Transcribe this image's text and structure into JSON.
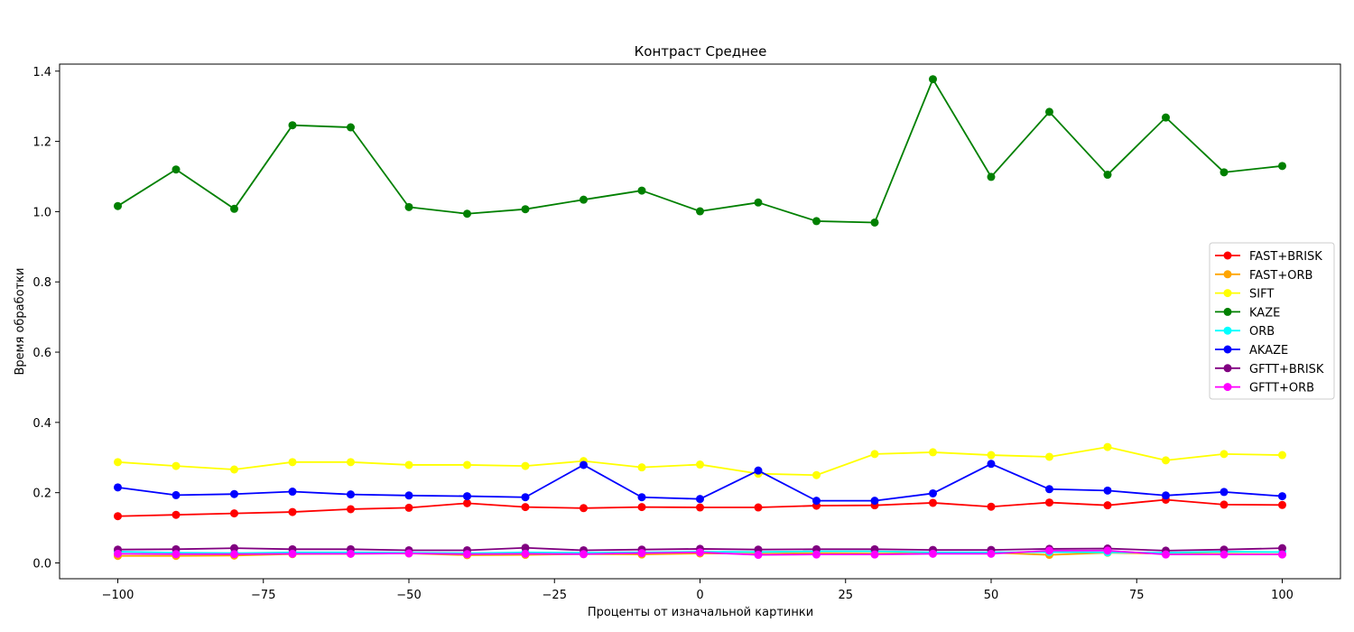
{
  "chart_data": {
    "type": "line",
    "title": "Контраст Среднее",
    "xlabel": "Проценты от изначальной картинки",
    "ylabel": "Время обработки",
    "xlim": [
      -110,
      110
    ],
    "ylim": [
      -0.045,
      1.42
    ],
    "xticks": [
      -100,
      -75,
      -50,
      -25,
      0,
      25,
      50,
      75,
      100
    ],
    "xtick_labels": [
      "−100",
      "−75",
      "−50",
      "−25",
      "0",
      "25",
      "50",
      "75",
      "100"
    ],
    "yticks": [
      0.0,
      0.2,
      0.4,
      0.6,
      0.8,
      1.0,
      1.2,
      1.4
    ],
    "ytick_labels": [
      "0.0",
      "0.2",
      "0.4",
      "0.6",
      "0.8",
      "1.0",
      "1.2",
      "1.4"
    ],
    "grid": false,
    "legend_position": "right",
    "x": [
      -100,
      -90,
      -80,
      -70,
      -60,
      -50,
      -40,
      -30,
      -20,
      -10,
      0,
      10,
      20,
      30,
      40,
      50,
      60,
      70,
      80,
      90,
      100
    ],
    "series": [
      {
        "name": "FAST+BRISK",
        "color": "#ff0000",
        "values": [
          0.133,
          0.137,
          0.141,
          0.145,
          0.153,
          0.157,
          0.17,
          0.159,
          0.156,
          0.159,
          0.158,
          0.158,
          0.163,
          0.164,
          0.171,
          0.16,
          0.172,
          0.164,
          0.18,
          0.166,
          0.165
        ]
      },
      {
        "name": "FAST+ORB",
        "color": "#ffa500",
        "values": [
          0.02,
          0.02,
          0.021,
          0.025,
          0.026,
          0.027,
          0.022,
          0.023,
          0.025,
          0.024,
          0.027,
          0.026,
          0.028,
          0.027,
          0.027,
          0.029,
          0.023,
          0.029,
          0.026,
          0.026,
          0.025
        ]
      },
      {
        "name": "SIFT",
        "color": "#ffff00",
        "values": [
          0.287,
          0.276,
          0.266,
          0.287,
          0.287,
          0.279,
          0.279,
          0.276,
          0.29,
          0.272,
          0.28,
          0.254,
          0.25,
          0.31,
          0.315,
          0.307,
          0.302,
          0.33,
          0.292,
          0.31,
          0.307
        ]
      },
      {
        "name": "KAZE",
        "color": "#008000",
        "values": [
          1.016,
          1.12,
          1.008,
          1.246,
          1.24,
          1.013,
          0.994,
          1.007,
          1.034,
          1.06,
          1.001,
          1.026,
          0.973,
          0.969,
          1.377,
          1.099,
          1.284,
          1.105,
          1.268,
          1.112,
          1.13
        ]
      },
      {
        "name": "ORB",
        "color": "#00ffff",
        "values": [
          0.032,
          0.029,
          0.028,
          0.03,
          0.03,
          0.029,
          0.028,
          0.03,
          0.029,
          0.03,
          0.032,
          0.031,
          0.033,
          0.033,
          0.03,
          0.03,
          0.031,
          0.03,
          0.029,
          0.032,
          0.031
        ]
      },
      {
        "name": "AKAZE",
        "color": "#0000ff",
        "values": [
          0.215,
          0.193,
          0.196,
          0.203,
          0.195,
          0.192,
          0.19,
          0.187,
          0.279,
          0.187,
          0.182,
          0.263,
          0.177,
          0.177,
          0.198,
          0.282,
          0.21,
          0.206,
          0.192,
          0.202,
          0.19
        ]
      },
      {
        "name": "GFTT+BRISK",
        "color": "#800080",
        "values": [
          0.038,
          0.039,
          0.042,
          0.039,
          0.039,
          0.036,
          0.036,
          0.043,
          0.036,
          0.038,
          0.04,
          0.038,
          0.039,
          0.039,
          0.037,
          0.037,
          0.04,
          0.041,
          0.035,
          0.038,
          0.042
        ]
      },
      {
        "name": "GFTT+ORB",
        "color": "#ff00ff",
        "values": [
          0.026,
          0.025,
          0.025,
          0.026,
          0.026,
          0.027,
          0.025,
          0.026,
          0.025,
          0.028,
          0.03,
          0.023,
          0.024,
          0.024,
          0.026,
          0.026,
          0.035,
          0.035,
          0.024,
          0.024,
          0.024
        ]
      }
    ]
  }
}
